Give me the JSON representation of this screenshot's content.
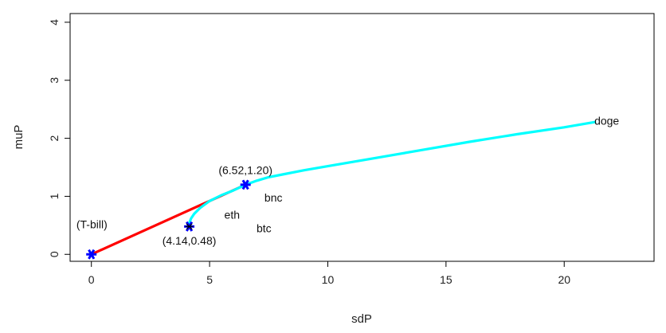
{
  "chart_data": {
    "type": "line",
    "title": "",
    "xlabel": "sdP",
    "ylabel": "muP",
    "xlim": [
      -0.9,
      23.8
    ],
    "ylim": [
      -0.12,
      4.15
    ],
    "x_ticks": [
      0,
      5,
      10,
      15,
      20
    ],
    "y_ticks": [
      0,
      1,
      2,
      3,
      4
    ],
    "grid": false,
    "legend": "none",
    "series": [
      {
        "color": "#ff0000",
        "values": [
          {
            "x": 0,
            "y": 0
          },
          {
            "x": 6.52,
            "y": 1.2
          }
        ]
      },
      {
        "color": "#00ffff",
        "values": [
          {
            "x": 4.14,
            "y": 0.48
          },
          {
            "x": 4.15,
            "y": 0.55
          },
          {
            "x": 4.22,
            "y": 0.62
          },
          {
            "x": 4.35,
            "y": 0.7
          },
          {
            "x": 4.6,
            "y": 0.8
          },
          {
            "x": 5.0,
            "y": 0.92
          },
          {
            "x": 5.5,
            "y": 1.02
          },
          {
            "x": 6.0,
            "y": 1.1
          },
          {
            "x": 6.52,
            "y": 1.2
          },
          {
            "x": 7.0,
            "y": 1.27
          },
          {
            "x": 7.5,
            "y": 1.33
          },
          {
            "x": 8.0,
            "y": 1.37
          },
          {
            "x": 9.0,
            "y": 1.45
          },
          {
            "x": 10.0,
            "y": 1.52
          },
          {
            "x": 12.0,
            "y": 1.66
          },
          {
            "x": 14.0,
            "y": 1.8
          },
          {
            "x": 16.0,
            "y": 1.94
          },
          {
            "x": 18.0,
            "y": 2.07
          },
          {
            "x": 20.0,
            "y": 2.19
          },
          {
            "x": 21.3,
            "y": 2.28
          }
        ]
      }
    ],
    "markers": [
      {
        "x": 0,
        "y": 0,
        "color": "#0000ff"
      },
      {
        "x": 4.14,
        "y": 0.48,
        "color": "#0000ff"
      },
      {
        "x": 6.52,
        "y": 1.2,
        "color": "#0000ff"
      }
    ],
    "small_markers": [
      {
        "x": 4.14,
        "y": 0.48,
        "color": "#000000"
      }
    ],
    "annotations": [
      {
        "text": "(T-bill)",
        "x": 0.02,
        "y": 0.52
      },
      {
        "text": "(4.14,0.48)",
        "x": 4.14,
        "y": 0.24
      },
      {
        "text": "(6.52,1.20)",
        "x": 6.52,
        "y": 1.45
      },
      {
        "text": "eth",
        "x": 5.95,
        "y": 0.68
      },
      {
        "text": "bnc",
        "x": 7.7,
        "y": 0.98
      },
      {
        "text": "btc",
        "x": 7.3,
        "y": 0.45
      },
      {
        "text": "doge",
        "x": 21.8,
        "y": 2.3
      }
    ]
  }
}
